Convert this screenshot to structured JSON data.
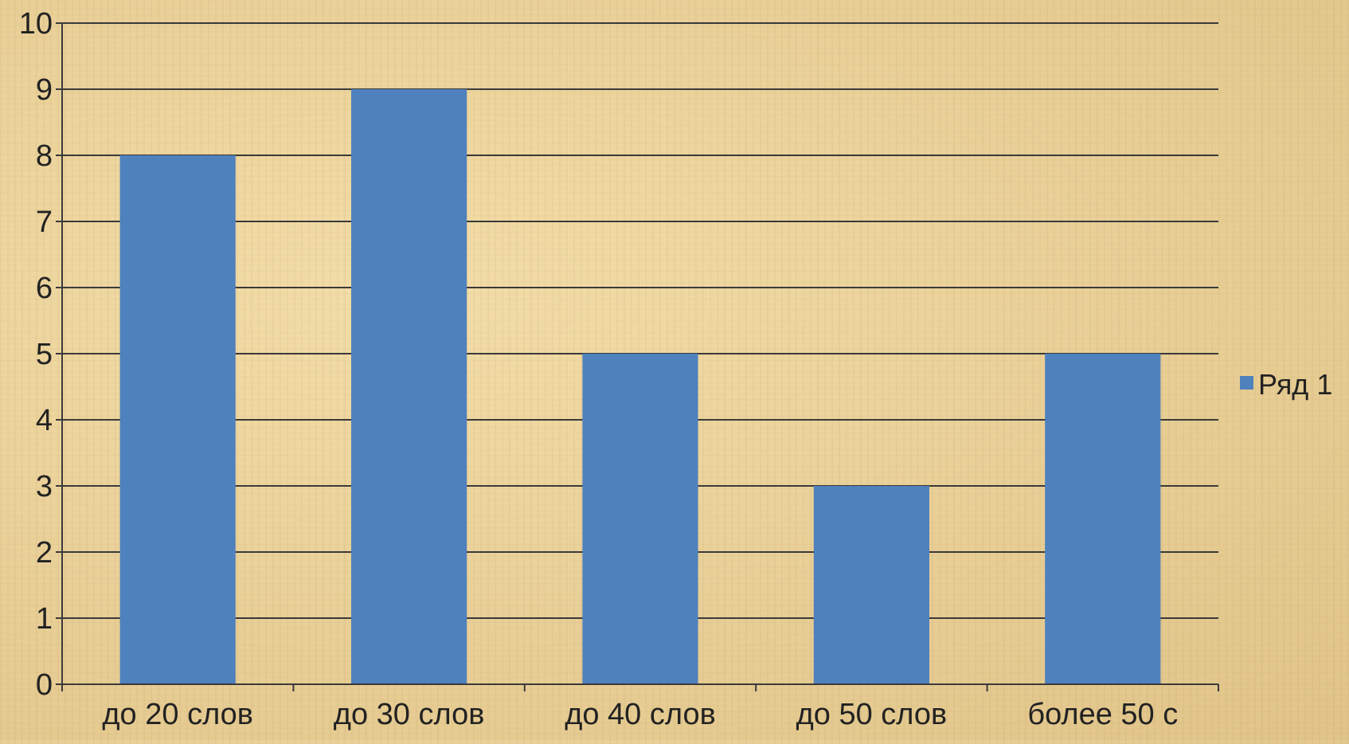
{
  "chart_data": {
    "type": "bar",
    "categories": [
      "до  20 слов",
      "до 30 слов",
      "до 40 слов",
      "до 50 слов",
      "более 50 с"
    ],
    "series": [
      {
        "name": "Ряд 1",
        "values": [
          8,
          9,
          5,
          3,
          5
        ]
      }
    ],
    "title": "",
    "xlabel": "",
    "ylabel": "",
    "ylim": [
      0,
      10
    ],
    "yticks": [
      "0",
      "1",
      "2",
      "3",
      "4",
      "5",
      "6",
      "7",
      "8",
      "9",
      "10"
    ],
    "grid": true,
    "legend_position": "right",
    "colors": {
      "bar": "#4f81bd",
      "grid": "#3a3a3a",
      "text": "#222222"
    }
  }
}
